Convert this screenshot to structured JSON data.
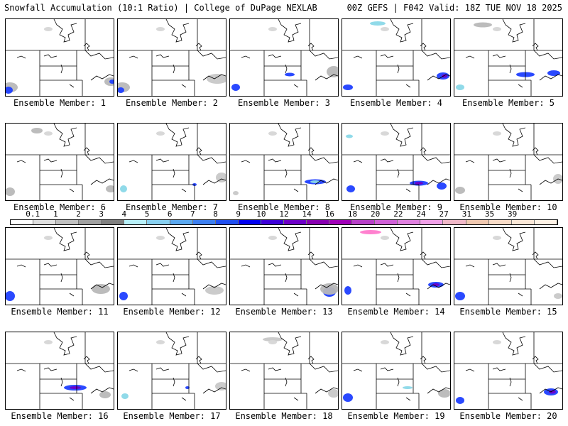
{
  "header": {
    "left": "Snowfall Accumulation (10:1 Ratio) | College of DuPage NEXLAB",
    "right": "00Z GEFS | F042 Valid: 18Z TUE NOV 18 2025"
  },
  "panel_label_prefix": "Ensemble Member: ",
  "members": [
    {
      "n": "1",
      "blobs": [
        [
          "w",
          6,
          96,
          22,
          14,
          "#b8b8b8"
        ],
        [
          "w",
          4,
          100,
          12,
          10,
          "#1f3fff"
        ],
        [
          "e",
          148,
          88,
          18,
          12,
          "#b8b8b8"
        ],
        [
          "e",
          150,
          88,
          8,
          6,
          "#1f3fff"
        ]
      ]
    },
    {
      "n": "2",
      "blobs": [
        [
          "w",
          6,
          96,
          22,
          14,
          "#b8b8b8"
        ],
        [
          "w",
          4,
          100,
          10,
          8,
          "#1f3fff"
        ],
        [
          "e",
          140,
          84,
          30,
          14,
          "#c8c8c8"
        ]
      ]
    },
    {
      "n": "3",
      "blobs": [
        [
          "c",
          84,
          78,
          14,
          5,
          "#1f3fff"
        ],
        [
          "e",
          146,
          74,
          20,
          16,
          "#b8b8b8"
        ],
        [
          "w",
          8,
          96,
          12,
          10,
          "#1f3fff"
        ]
      ]
    },
    {
      "n": "4",
      "blobs": [
        [
          "c",
          142,
          80,
          18,
          10,
          "#1f3fff"
        ],
        [
          "c",
          144,
          80,
          8,
          5,
          "#6e00c8"
        ],
        [
          "n",
          50,
          6,
          22,
          6,
          "#8ad8e8"
        ],
        [
          "w",
          8,
          96,
          14,
          8,
          "#1f3fff"
        ]
      ]
    },
    {
      "n": "5",
      "blobs": [
        [
          "c",
          100,
          78,
          26,
          7,
          "#1f3fff"
        ],
        [
          "c",
          140,
          76,
          18,
          8,
          "#1f3fff"
        ],
        [
          "n",
          40,
          8,
          26,
          7,
          "#b8b8b8"
        ],
        [
          "w",
          8,
          96,
          12,
          8,
          "#8ad8e8"
        ]
      ]
    },
    {
      "n": "6",
      "blobs": [
        [
          "n",
          44,
          10,
          16,
          8,
          "#b8b8b8"
        ],
        [
          "w",
          6,
          96,
          14,
          12,
          "#b8b8b8"
        ],
        [
          "e",
          148,
          92,
          14,
          10,
          "#b8b8b8"
        ]
      ]
    },
    {
      "n": "7",
      "blobs": [
        [
          "c",
          108,
          86,
          6,
          4,
          "#1f3fff"
        ],
        [
          "w",
          8,
          92,
          10,
          10,
          "#8ad8e8"
        ],
        [
          "e",
          146,
          76,
          16,
          14,
          "#c8c8c8"
        ]
      ]
    },
    {
      "n": "8",
      "blobs": [
        [
          "c",
          120,
          82,
          30,
          7,
          "#1f3fff"
        ],
        [
          "c",
          120,
          82,
          14,
          4,
          "#8ad8e8"
        ],
        [
          "w",
          8,
          98,
          8,
          6,
          "#c8c8c8"
        ]
      ]
    },
    {
      "n": "9",
      "blobs": [
        [
          "c",
          108,
          84,
          26,
          7,
          "#1f3fff"
        ],
        [
          "c",
          108,
          84,
          12,
          4,
          "#6e00c8"
        ],
        [
          "w",
          12,
          92,
          12,
          10,
          "#1f3fff"
        ],
        [
          "n",
          10,
          18,
          10,
          5,
          "#8ad8e8"
        ],
        [
          "e",
          140,
          88,
          14,
          10,
          "#1f3fff"
        ]
      ]
    },
    {
      "n": "10",
      "blobs": [
        [
          "w",
          8,
          94,
          14,
          10,
          "#b8b8b8"
        ],
        [
          "e",
          146,
          78,
          14,
          14,
          "#c8c8c8"
        ]
      ]
    },
    {
      "n": "11",
      "blobs": [
        [
          "w",
          6,
          96,
          14,
          14,
          "#1f3fff"
        ],
        [
          "e",
          134,
          86,
          26,
          14,
          "#b8b8b8"
        ]
      ]
    },
    {
      "n": "12",
      "blobs": [
        [
          "w",
          8,
          96,
          12,
          12,
          "#1f3fff"
        ],
        [
          "e",
          136,
          88,
          26,
          12,
          "#c8c8c8"
        ]
      ]
    },
    {
      "n": "13",
      "blobs": [
        [
          "e",
          140,
          90,
          18,
          14,
          "#1f3fff"
        ],
        [
          "e",
          140,
          86,
          26,
          16,
          "#b8b8b8"
        ]
      ]
    },
    {
      "n": "14",
      "blobs": [
        [
          "c",
          132,
          80,
          22,
          8,
          "#1f3fff"
        ],
        [
          "c",
          132,
          80,
          10,
          4,
          "#6e00c8"
        ],
        [
          "n",
          40,
          6,
          30,
          6,
          "#ff7acc"
        ],
        [
          "w",
          8,
          88,
          10,
          12,
          "#1f3fff"
        ]
      ]
    },
    {
      "n": "15",
      "blobs": [
        [
          "w",
          8,
          96,
          14,
          12,
          "#1f3fff"
        ],
        [
          "e",
          146,
          96,
          12,
          8,
          "#c8c8c8"
        ]
      ]
    },
    {
      "n": "16",
      "blobs": [
        [
          "c",
          98,
          78,
          32,
          8,
          "#1f3fff"
        ],
        [
          "c",
          98,
          78,
          16,
          4,
          "#6e00c8"
        ],
        [
          "e",
          140,
          88,
          16,
          10,
          "#b8b8b8"
        ]
      ]
    },
    {
      "n": "17",
      "blobs": [
        [
          "c",
          98,
          78,
          6,
          4,
          "#1f3fff"
        ],
        [
          "w",
          10,
          90,
          10,
          8,
          "#8ad8e8"
        ],
        [
          "e",
          146,
          76,
          18,
          12,
          "#c8c8c8"
        ]
      ]
    },
    {
      "n": "18",
      "blobs": [
        [
          "n",
          60,
          10,
          28,
          6,
          "#c8c8c8"
        ],
        [
          "e",
          146,
          86,
          16,
          12,
          "#c8c8c8"
        ]
      ]
    },
    {
      "n": "19",
      "blobs": [
        [
          "c",
          92,
          78,
          14,
          4,
          "#8ad8e8"
        ],
        [
          "w",
          8,
          92,
          14,
          12,
          "#1f3fff"
        ],
        [
          "e",
          144,
          86,
          18,
          12,
          "#b8b8b8"
        ]
      ]
    },
    {
      "n": "20",
      "blobs": [
        [
          "c",
          136,
          84,
          20,
          10,
          "#1f3fff"
        ],
        [
          "c",
          138,
          84,
          10,
          5,
          "#6e00c8"
        ],
        [
          "w",
          8,
          96,
          12,
          10,
          "#1f3fff"
        ]
      ]
    }
  ],
  "colorbar": {
    "ticks": [
      "0.1",
      "1",
      "2",
      "3",
      "4",
      "5",
      "6",
      "7",
      "8",
      "9",
      "10",
      "12",
      "14",
      "16",
      "18",
      "20",
      "22",
      "24",
      "27",
      "31",
      "35",
      "39"
    ],
    "colors": [
      "#ffffff",
      "#e0e0e0",
      "#c0c0c0",
      "#a0a0a0",
      "#808080",
      "#b8f0f8",
      "#88d0f0",
      "#5aa8f0",
      "#3c7ff0",
      "#1f4ff0",
      "#0000f0",
      "#3c00d8",
      "#6e00c8",
      "#8800b0",
      "#a000b8",
      "#b840c8",
      "#d060d8",
      "#e080e0",
      "#f0a0e8",
      "#f0b8c8",
      "#f0c8b0",
      "#f8dcc8",
      "#fbe8d8",
      "#fff2e6"
    ]
  }
}
